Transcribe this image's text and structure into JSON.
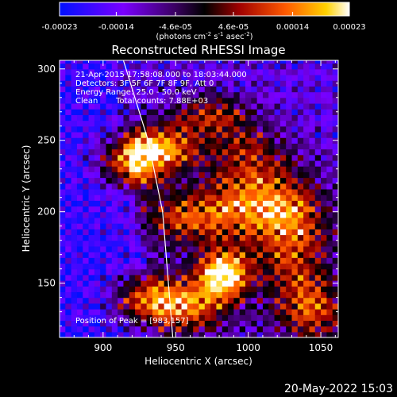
{
  "chart_data": {
    "type": "heatmap",
    "title": "Reconstructed RHESSI Image",
    "xlabel": "Heliocentric X (arcsec)",
    "ylabel": "Heliocentric Y (arcsec)",
    "xlim": [
      870,
      1062
    ],
    "ylim": [
      112,
      306
    ],
    "x_ticks": [
      900,
      950,
      1000,
      1050
    ],
    "y_ticks": [
      150,
      200,
      250,
      300
    ],
    "colorbar": {
      "min": -0.00023,
      "max": 0.00023,
      "tick_values": [
        -0.00023,
        -0.00014,
        -4.6e-05,
        4.6e-05,
        0.00014,
        0.00023
      ],
      "tick_labels": [
        "-0.00023",
        "-0.00014",
        "-4.6e-05",
        "4.6e-05",
        "0.00014",
        "0.00023"
      ],
      "units_text": "(photons cm",
      "units_exp1": "-2",
      "units_mid": " s",
      "units_exp2": "-1",
      "units_end": " asec",
      "units_exp3": "-2",
      "units_close": ")",
      "colormap": "rhessi (blue-purple-black-red-orange-yellow-white)"
    },
    "annotations": {
      "time_range": "21-Apr-2015 17:58:08.000 to 18:03:44.000",
      "detectors": "Detectors: 3F 5F 6F 7F 8F 9F, Att 0",
      "energy": "Energy Range: 25.0 - 50.0 keV",
      "method": "Clean",
      "counts": "Total counts: 7.88E+03",
      "peak": "Position of Peak = [983,157]"
    },
    "peak": {
      "x": 983,
      "y": 157
    },
    "limb_line": [
      [
        914,
        306
      ],
      [
        931,
        250
      ],
      [
        941,
        200
      ],
      [
        945,
        150
      ],
      [
        948,
        112
      ]
    ],
    "grid_cell_arcsec": 4,
    "emission_sources": [
      {
        "x": 935,
        "y": 245,
        "sx": 22,
        "sy": 11,
        "amp": 0.85
      },
      {
        "x": 920,
        "y": 230,
        "sx": 16,
        "sy": 10,
        "amp": 0.6
      },
      {
        "x": 975,
        "y": 268,
        "sx": 20,
        "sy": 10,
        "amp": 0.5
      },
      {
        "x": 1000,
        "y": 240,
        "sx": 18,
        "sy": 14,
        "amp": 0.45
      },
      {
        "x": 983,
        "y": 157,
        "sx": 12,
        "sy": 12,
        "amp": 1.0
      },
      {
        "x": 955,
        "y": 135,
        "sx": 22,
        "sy": 14,
        "amp": 0.75
      },
      {
        "x": 925,
        "y": 140,
        "sx": 14,
        "sy": 12,
        "amp": 0.55
      },
      {
        "x": 1030,
        "y": 180,
        "sx": 20,
        "sy": 30,
        "amp": 0.6
      },
      {
        "x": 1045,
        "y": 130,
        "sx": 16,
        "sy": 16,
        "amp": 0.55
      },
      {
        "x": 1000,
        "y": 205,
        "sx": 26,
        "sy": 16,
        "amp": 0.6
      },
      {
        "x": 955,
        "y": 195,
        "sx": 22,
        "sy": 14,
        "amp": 0.5
      }
    ]
  },
  "footer": {
    "date": "20-May-2022 15:03"
  }
}
